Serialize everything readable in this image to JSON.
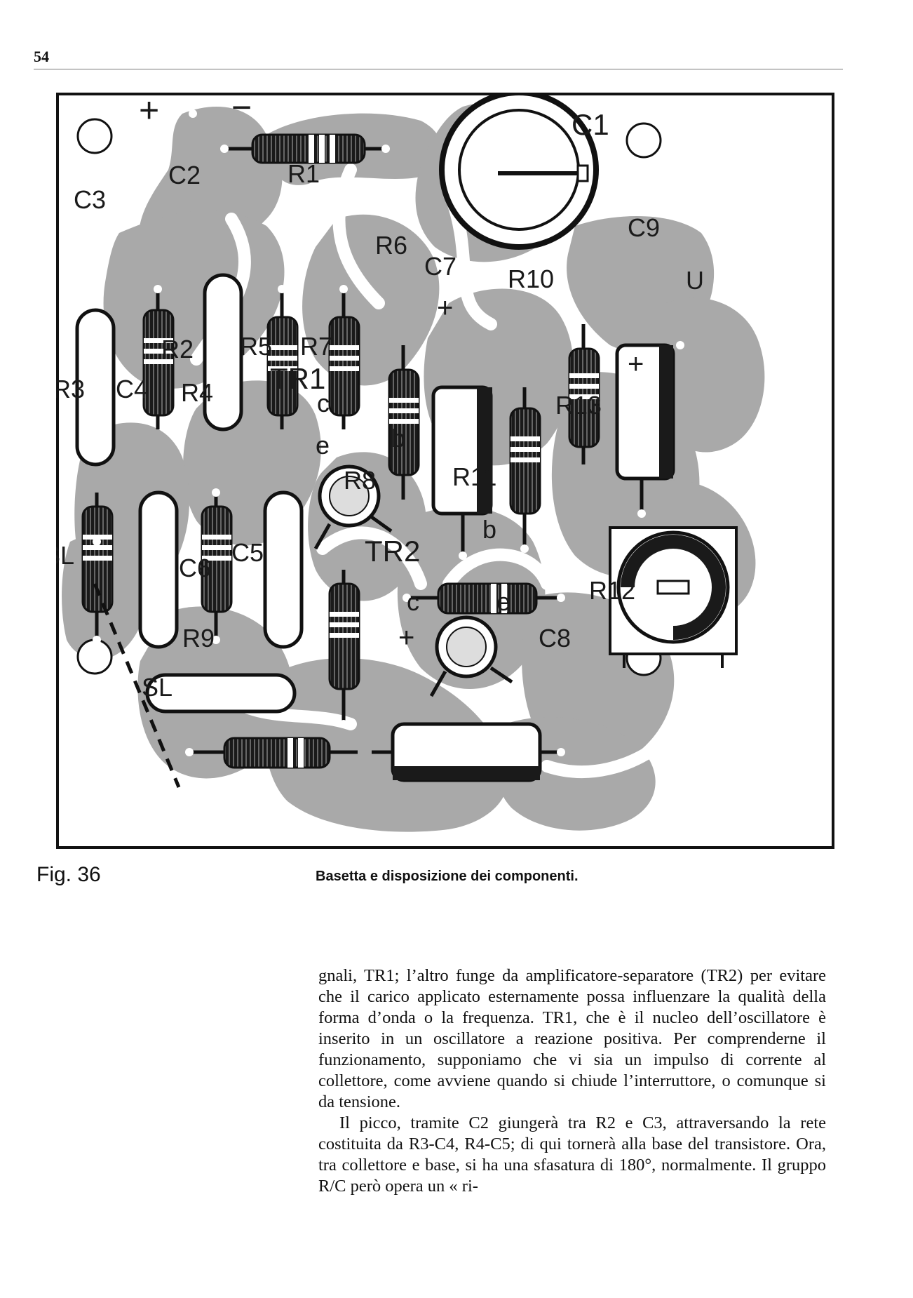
{
  "page": {
    "number": "54"
  },
  "figure": {
    "label": "Fig. 36",
    "caption": "Basetta e disposizione dei componenti.",
    "pcb_labels": {
      "plus": "+",
      "minus": "−",
      "R1": "R1",
      "C1": "C1",
      "C2": "C2",
      "C3": "C3",
      "C9": "C9",
      "U": "U",
      "R6": "R6",
      "C7": "C7",
      "R10": "R10",
      "R2": "R2",
      "R5": "R5",
      "R7": "R7",
      "TR1": "TR1",
      "R3": "R3",
      "C4": "C4",
      "R4": "R4",
      "R13": "R13",
      "c1": "c",
      "e1": "e",
      "b1": "b",
      "R8": "R8",
      "R11": "R11",
      "TR2": "TR2",
      "b2": "b",
      "c2": "c",
      "e2": "e",
      "SL_top": "SL",
      "C5": "C5",
      "C6": "C6",
      "R12": "R12",
      "R9": "R9",
      "C8": "C8",
      "SL_bottom": "SL",
      "cap_plus_C7": "+",
      "cap_plus_C9": "+",
      "cap_plus_C8": "+"
    }
  },
  "body": {
    "paragraphs": [
      "gnali, TR1; l’altro funge da amplificatore-separatore (TR2) per evitare che il carico applicato esternamente possa influenzare la qualità della forma d’onda o la frequenza. TR1, che è il nucleo dell’oscillatore è inserito in un oscillatore a reazione positiva. Per comprenderne il funzionamento, supponiamo che vi sia un impulso di corrente al collettore, come avviene quando si chiude l’interruttore, o comunque si da tensione.",
      "Il picco, tramite C2 giungerà tra R2 e C3, attraversando la rete costituita da R3-C4, R4-C5; di qui tornerà alla base del transistore. Ora, tra collettore e base, si ha una sfasatura di 180°, normalmente. Il gruppo R/C però opera un « ri-"
    ]
  }
}
